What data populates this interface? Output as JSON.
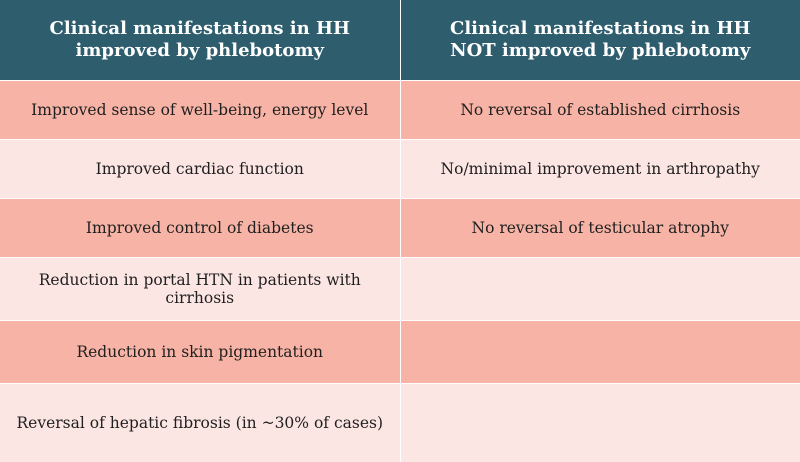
{
  "table": {
    "headers": [
      "Clinical manifestations in HH improved by phlebotomy",
      "Clinical manifestations in HH  NOT improved by phlebotomy"
    ],
    "rows": [
      [
        "Improved sense of well-being, energy level",
        "No reversal of established cirrhosis"
      ],
      [
        "Improved cardiac function",
        "No/minimal improvement in arthropathy"
      ],
      [
        "Improved control of diabetes",
        "No reversal of testicular atrophy"
      ],
      [
        "Reduction in portal HTN in patients with cirrhosis",
        ""
      ],
      [
        "Reduction in skin pigmentation",
        ""
      ],
      [
        "Reversal of hepatic fibrosis (in ~30% of cases)",
        ""
      ]
    ]
  },
  "colors": {
    "header_bg": "#2e5d6e",
    "row_dark": "#f7b4a6",
    "row_light": "#fce6e3"
  }
}
